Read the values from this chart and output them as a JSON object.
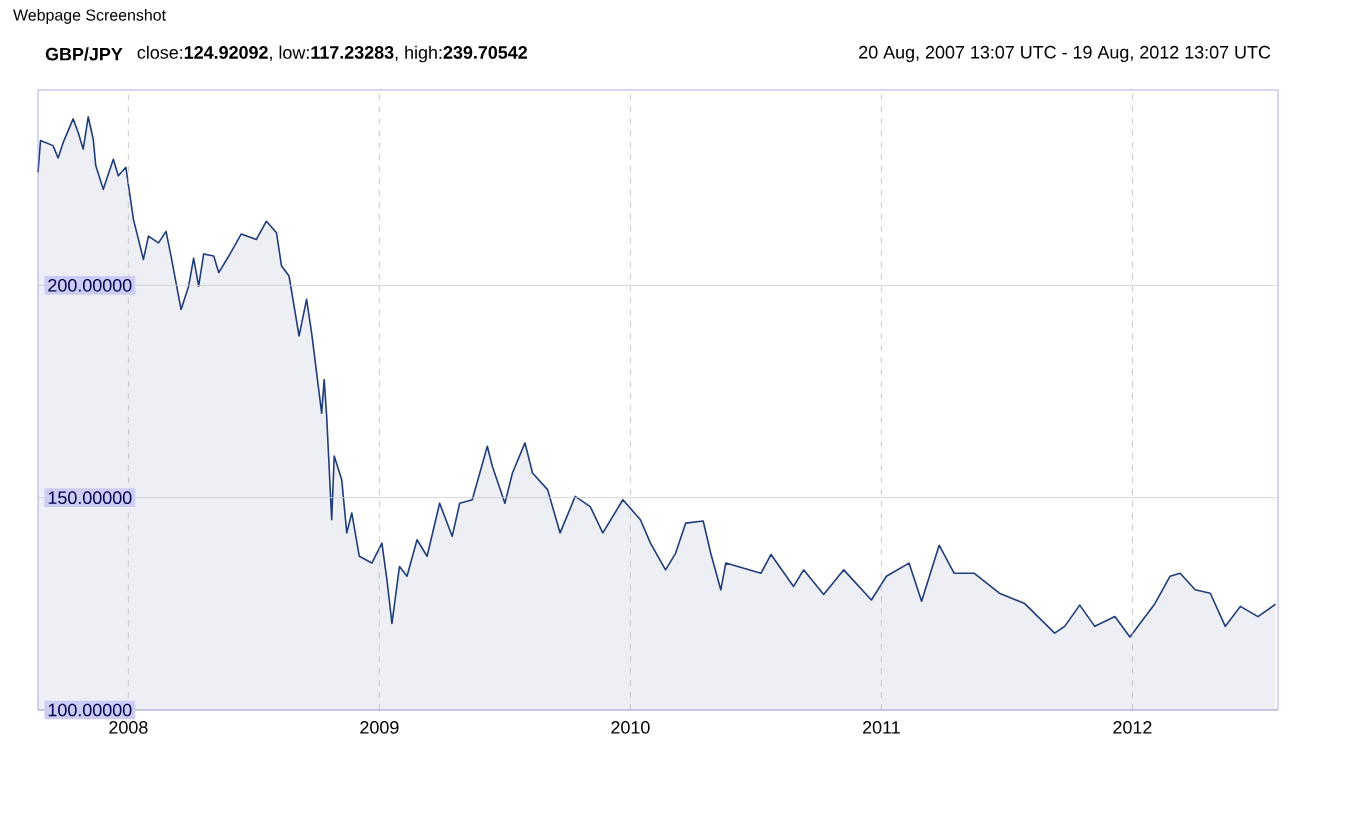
{
  "chart_data": {
    "type": "area",
    "title": "GBP/JPY",
    "subtitle": "20 Aug, 2007 13:07 UTC - 19 Aug, 2012 13:07 UTC",
    "annotations": [
      "close:**124.92092**, low:**117.23283**, high:**239.70542**",
      "Webpage Screenshot"
    ],
    "x": [
      2007.64,
      2007.65,
      2007.7,
      2007.72,
      2007.74,
      2007.78,
      2007.8,
      2007.82,
      2007.84,
      2007.86,
      2007.87,
      2007.9,
      2007.94,
      2007.96,
      2007.99,
      2008.02,
      2008.06,
      2008.08,
      2008.12,
      2008.15,
      2008.17,
      2008.21,
      2008.24,
      2008.26,
      2008.28,
      2008.3,
      2008.34,
      2008.36,
      2008.4,
      2008.45,
      2008.51,
      2008.55,
      2008.59,
      2008.61,
      2008.64,
      2008.68,
      2008.71,
      2008.73,
      2008.77,
      2008.78,
      2008.79,
      2008.81,
      2008.82,
      2008.85,
      2008.87,
      2008.89,
      2008.92,
      2008.97,
      2009.01,
      2009.03,
      2009.05,
      2009.08,
      2009.11,
      2009.15,
      2009.19,
      2009.24,
      2009.29,
      2009.32,
      2009.37,
      2009.43,
      2009.45,
      2009.5,
      2009.53,
      2009.58,
      2009.61,
      2009.67,
      2009.72,
      2009.78,
      2009.84,
      2009.89,
      2009.97,
      2010.04,
      2010.08,
      2010.14,
      2010.18,
      2010.22,
      2010.29,
      2010.32,
      2010.36,
      2010.38,
      2010.52,
      2010.56,
      2010.65,
      2010.69,
      2010.77,
      2010.85,
      2010.96,
      2011.02,
      2011.11,
      2011.16,
      2011.23,
      2011.29,
      2011.37,
      2011.47,
      2011.57,
      2011.69,
      2011.73,
      2011.79,
      2011.85,
      2011.93,
      2011.99,
      2012.09,
      2012.15,
      2012.19,
      2012.25,
      2012.31,
      2012.37,
      2012.43,
      2012.5,
      2012.57
    ],
    "values": [
      226.6,
      234.1,
      232.9,
      230.0,
      233.6,
      239.2,
      236.0,
      232.1,
      239.7,
      234.4,
      228.2,
      222.6,
      229.7,
      225.8,
      227.8,
      215.6,
      206.1,
      211.6,
      210.0,
      212.7,
      206.9,
      194.3,
      199.8,
      206.4,
      199.8,
      207.4,
      206.9,
      203.0,
      206.9,
      212.1,
      210.8,
      215.1,
      212.4,
      204.6,
      202.2,
      188.1,
      196.7,
      188.8,
      169.9,
      177.8,
      169.2,
      144.8,
      159.8,
      154.2,
      141.7,
      146.4,
      136.2,
      134.6,
      139.3,
      130.7,
      120.4,
      133.8,
      131.5,
      140.1,
      136.2,
      148.7,
      140.9,
      148.7,
      149.5,
      162.1,
      157.4,
      148.7,
      155.8,
      162.9,
      155.8,
      151.9,
      141.7,
      150.3,
      147.9,
      141.7,
      149.5,
      144.8,
      139.3,
      133.0,
      136.9,
      144.0,
      144.5,
      136.9,
      128.3,
      134.6,
      132.2,
      136.6,
      129.1,
      133.0,
      127.2,
      133.0,
      125.9,
      131.5,
      134.6,
      125.6,
      138.8,
      132.2,
      132.2,
      127.5,
      125.1,
      118.1,
      119.7,
      124.7,
      119.7,
      122.0,
      117.2,
      125.1,
      131.5,
      132.2,
      128.3,
      127.5,
      119.7,
      124.4,
      122.0,
      124.9
    ],
    "color": "#1f3d7a",
    "xlim": [
      2007.64,
      2012.58
    ],
    "xticks": [
      2008,
      2009,
      2010,
      2011,
      2012
    ],
    "ylim": [
      100,
      246
    ],
    "yticks": [
      {
        "value": 100,
        "label": "100.00000"
      },
      {
        "value": 150,
        "label": "150.00000"
      },
      {
        "value": 200,
        "label": "200.00000"
      }
    ],
    "grid": true,
    "marker": "none",
    "line_style": "solid"
  }
}
